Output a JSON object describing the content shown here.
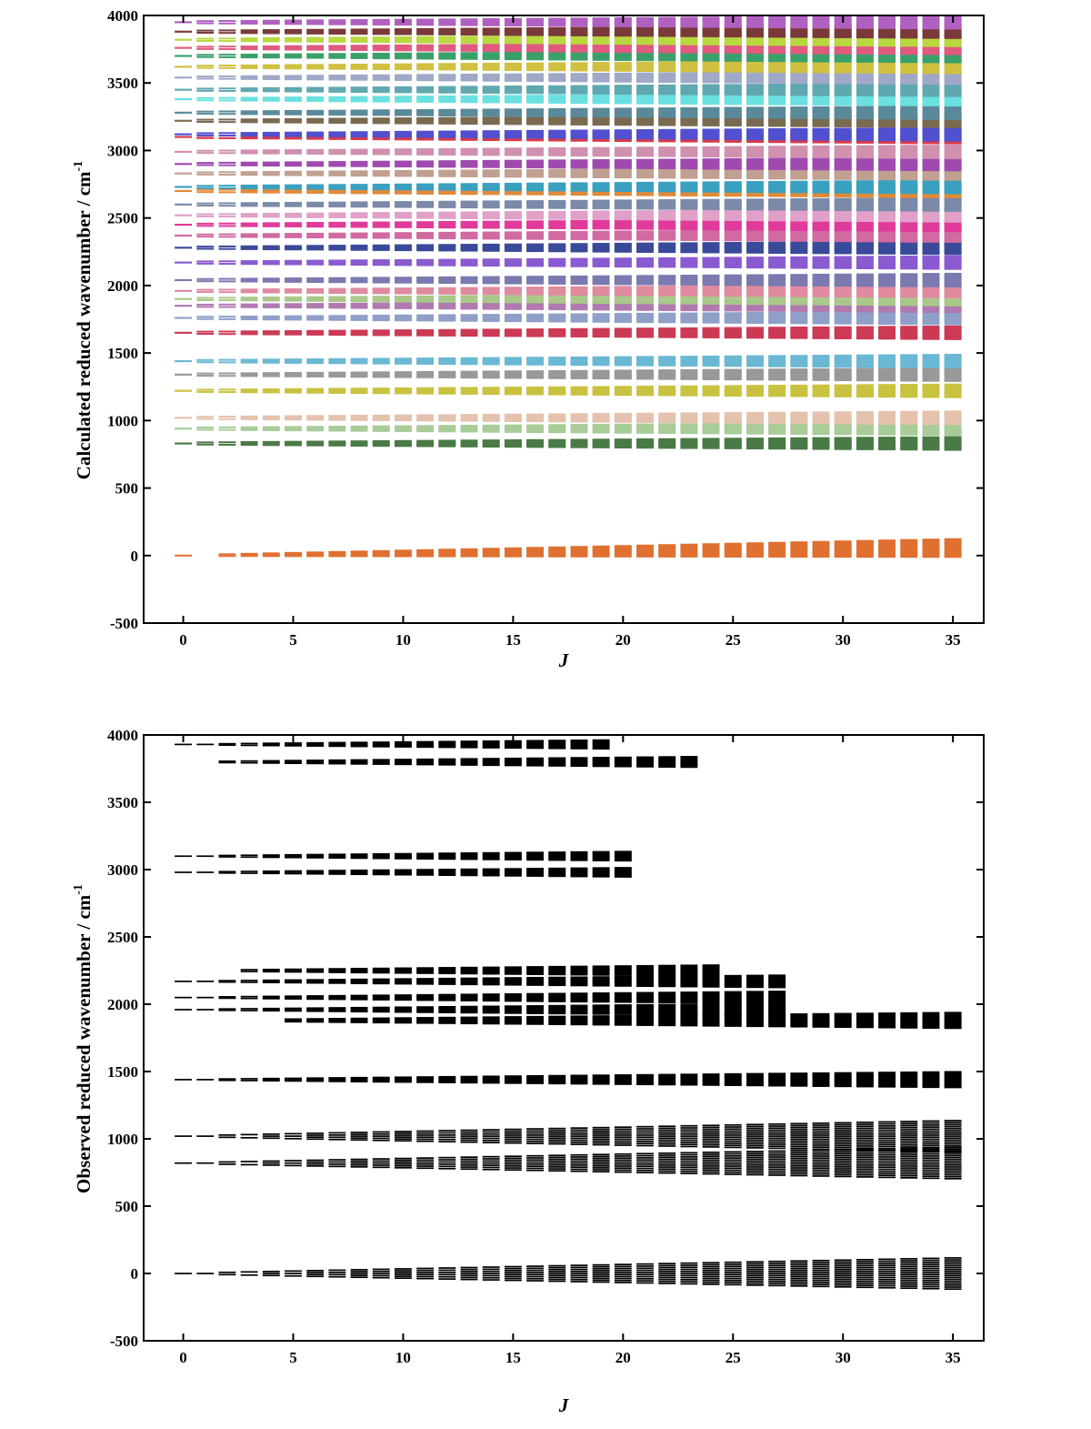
{
  "chart_data": [
    {
      "type": "scatter",
      "mark": "horizontal-level-dashes",
      "title": "",
      "xlabel": "J",
      "ylabel": "Calculated reduced wavenumber / cm",
      "ylabel_superscript": "-1",
      "xlim": [
        -1.8,
        36.4
      ],
      "ylim": [
        -500,
        4000
      ],
      "xticks": [
        0,
        5,
        10,
        15,
        20,
        25,
        30,
        35
      ],
      "yticks": [
        -500,
        0,
        500,
        1000,
        1500,
        2000,
        2500,
        3000,
        3500,
        4000
      ],
      "J_range": [
        0,
        35
      ],
      "grid": false,
      "legend": "none",
      "series": [
        {
          "name": "ground band",
          "color": "#e07030",
          "center_wavenumber": 0,
          "min_J": 0
        },
        {
          "name": "band ~830",
          "color": "#4a7a46",
          "center_wavenumber": 830,
          "min_J": 0
        },
        {
          "name": "band ~940",
          "color": "#a9cc98",
          "center_wavenumber": 940,
          "min_J": 0
        },
        {
          "name": "band ~1020",
          "color": "#e4c2ad",
          "center_wavenumber": 1020,
          "min_J": 0
        },
        {
          "name": "band ~1220",
          "color": "#c9c240",
          "center_wavenumber": 1220,
          "min_J": 0
        },
        {
          "name": "band ~1340",
          "color": "#999999",
          "center_wavenumber": 1340,
          "min_J": 0
        },
        {
          "name": "band ~1440",
          "color": "#6ab8d4",
          "center_wavenumber": 1440,
          "min_J": 0
        },
        {
          "name": "band ~1650",
          "color": "#cc3a55",
          "center_wavenumber": 1650,
          "min_J": 0
        },
        {
          "name": "band ~1760",
          "color": "#8fa0c8",
          "center_wavenumber": 1760,
          "min_J": 0
        },
        {
          "name": "band ~1850",
          "color": "#b07ab0",
          "center_wavenumber": 1850,
          "min_J": 0
        },
        {
          "name": "band ~1900",
          "color": "#a9c88a",
          "center_wavenumber": 1900,
          "min_J": 0
        },
        {
          "name": "band ~1960",
          "color": "#e08aa0",
          "center_wavenumber": 1960,
          "min_J": 0
        },
        {
          "name": "band ~2040",
          "color": "#7a7ab0",
          "center_wavenumber": 2040,
          "min_J": 0
        },
        {
          "name": "band ~2170",
          "color": "#8a5ad0",
          "center_wavenumber": 2170,
          "min_J": 0
        },
        {
          "name": "band ~2280",
          "color": "#3a4a9a",
          "center_wavenumber": 2280,
          "min_J": 0
        },
        {
          "name": "band ~2370",
          "color": "#d06aa0",
          "center_wavenumber": 2370,
          "min_J": 0
        },
        {
          "name": "band ~2450",
          "color": "#e03a9a",
          "center_wavenumber": 2450,
          "min_J": 0
        },
        {
          "name": "band ~2520",
          "color": "#e0a0c8",
          "center_wavenumber": 2520,
          "min_J": 0
        },
        {
          "name": "band ~2600",
          "color": "#7a8aa8",
          "center_wavenumber": 2600,
          "min_J": 0
        },
        {
          "name": "band ~2700",
          "color": "#e08a3a",
          "center_wavenumber": 2700,
          "min_J": 0
        },
        {
          "name": "band ~2730",
          "color": "#3aa0c0",
          "center_wavenumber": 2730,
          "min_J": 0
        },
        {
          "name": "band ~2830",
          "color": "#c0a090",
          "center_wavenumber": 2830,
          "min_J": 0
        },
        {
          "name": "band ~2900",
          "color": "#a04ab0",
          "center_wavenumber": 2900,
          "min_J": 0
        },
        {
          "name": "band ~2990",
          "color": "#d090b0",
          "center_wavenumber": 2990,
          "min_J": 0
        },
        {
          "name": "band ~3100",
          "color": "#d83a4a",
          "center_wavenumber": 3100,
          "min_J": 0
        },
        {
          "name": "band ~3120",
          "color": "#5050d0",
          "center_wavenumber": 3120,
          "min_J": 0
        },
        {
          "name": "band ~3220",
          "color": "#7a6a50",
          "center_wavenumber": 3220,
          "min_J": 0
        },
        {
          "name": "band ~3280",
          "color": "#5a8a9a",
          "center_wavenumber": 3280,
          "min_J": 0
        },
        {
          "name": "band ~3380",
          "color": "#6ae0e0",
          "center_wavenumber": 3380,
          "min_J": 0
        },
        {
          "name": "band ~3450",
          "color": "#60a8b0",
          "center_wavenumber": 3450,
          "min_J": 0
        },
        {
          "name": "band ~3540",
          "color": "#a0a8c8",
          "center_wavenumber": 3540,
          "min_J": 0
        },
        {
          "name": "band ~3620",
          "color": "#d0c040",
          "center_wavenumber": 3620,
          "min_J": 0
        },
        {
          "name": "band ~3700",
          "color": "#3aa06a",
          "center_wavenumber": 3700,
          "min_J": 0
        },
        {
          "name": "band ~3760",
          "color": "#e05a80",
          "center_wavenumber": 3760,
          "min_J": 0
        },
        {
          "name": "band ~3820",
          "color": "#b8d840",
          "center_wavenumber": 3820,
          "min_J": 0
        },
        {
          "name": "band ~3880",
          "color": "#7a3a3a",
          "center_wavenumber": 3880,
          "min_J": 0
        },
        {
          "name": "band ~3950",
          "color": "#b060c0",
          "center_wavenumber": 3950,
          "min_J": 0
        }
      ]
    },
    {
      "type": "scatter",
      "mark": "horizontal-level-dashes",
      "title": "",
      "xlabel": "J",
      "ylabel": "Observed reduced wavenumber / cm",
      "ylabel_superscript": "-1",
      "xlim": [
        -1.8,
        36.4
      ],
      "ylim": [
        -500,
        4000
      ],
      "xticks": [
        0,
        5,
        10,
        15,
        20,
        25,
        30,
        35
      ],
      "yticks": [
        -500,
        0,
        500,
        1000,
        1500,
        2000,
        2500,
        3000,
        3500,
        4000
      ],
      "grid": false,
      "legend": "none",
      "color": "#000000",
      "series": [
        {
          "name": "ground band",
          "center_wavenumber": 0,
          "J_range": [
            0,
            35
          ]
        },
        {
          "name": "band ~820",
          "center_wavenumber": 820,
          "J_range": [
            0,
            35
          ]
        },
        {
          "name": "band ~1020",
          "center_wavenumber": 1020,
          "J_range": [
            0,
            35
          ]
        },
        {
          "name": "band ~1440",
          "center_wavenumber": 1440,
          "J_range": [
            0,
            35
          ]
        },
        {
          "name": "band ~1880",
          "center_wavenumber": 1880,
          "J_range": [
            5,
            35
          ]
        },
        {
          "name": "band ~1960",
          "center_wavenumber": 1960,
          "J_range": [
            0,
            27
          ]
        },
        {
          "name": "band ~2050",
          "center_wavenumber": 2050,
          "J_range": [
            0,
            27
          ]
        },
        {
          "name": "band ~2170",
          "center_wavenumber": 2170,
          "J_range": [
            0,
            27
          ]
        },
        {
          "name": "band ~2250",
          "center_wavenumber": 2250,
          "J_range": [
            3,
            24
          ]
        },
        {
          "name": "band ~2980",
          "center_wavenumber": 2980,
          "J_range": [
            0,
            20
          ]
        },
        {
          "name": "band ~3100",
          "center_wavenumber": 3100,
          "J_range": [
            0,
            20
          ]
        },
        {
          "name": "band ~3800",
          "center_wavenumber": 3800,
          "J_range": [
            2,
            23
          ]
        },
        {
          "name": "band ~3930",
          "center_wavenumber": 3930,
          "J_range": [
            0,
            19
          ]
        }
      ]
    }
  ]
}
